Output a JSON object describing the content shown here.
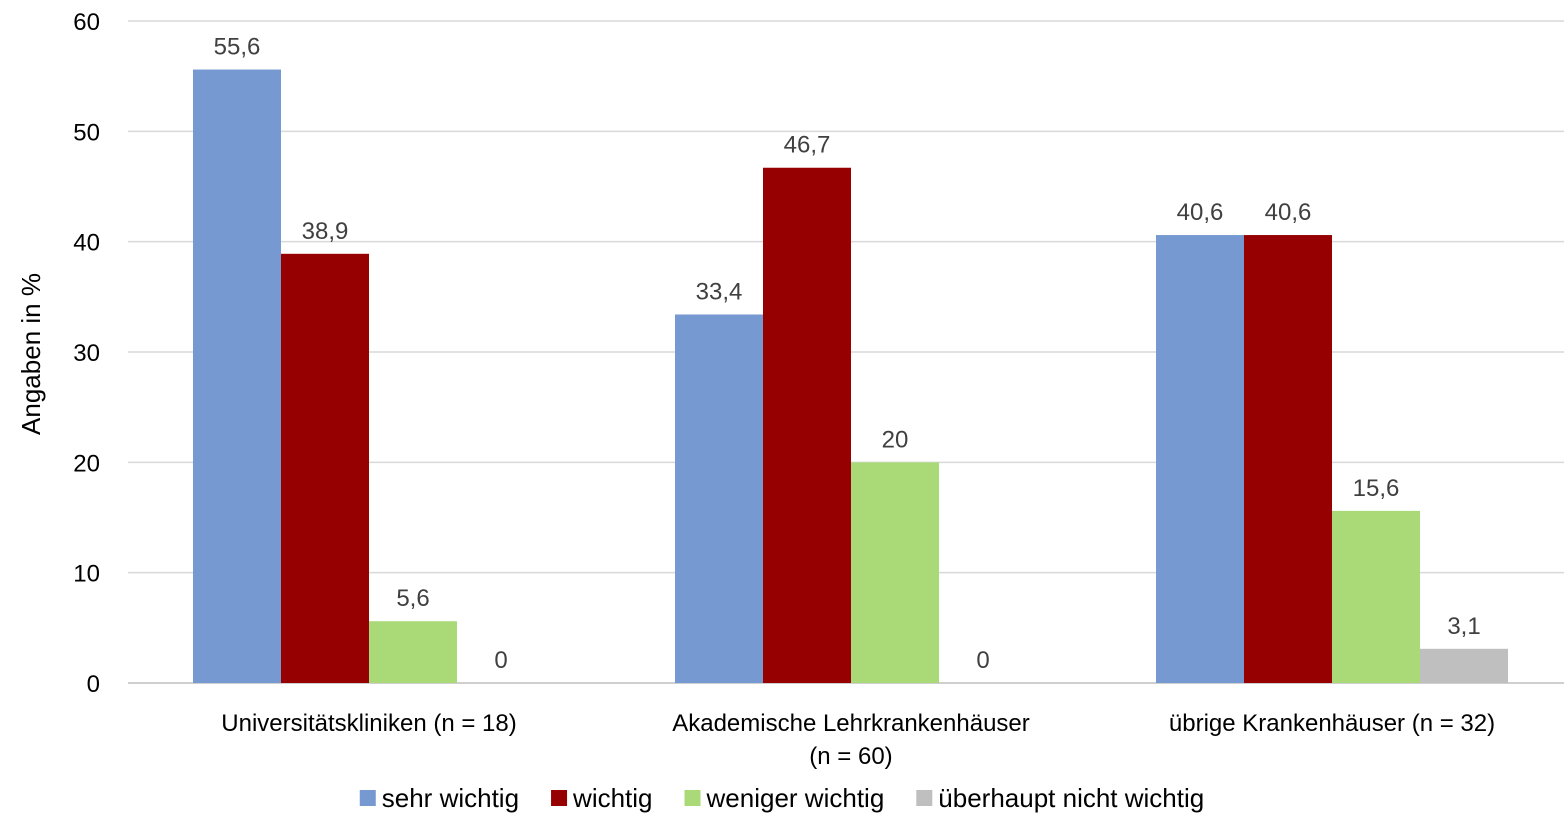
{
  "chart_data": {
    "type": "bar",
    "ylabel": "Angaben in %",
    "ylim": [
      0,
      60
    ],
    "yticks": [
      0,
      10,
      20,
      30,
      40,
      50,
      60
    ],
    "grid": true,
    "legend_position": "bottom",
    "categories": [
      [
        "Universitätskliniken (n = 18)"
      ],
      [
        "Akademische Lehrkrankenhäuser",
        "(n = 60)"
      ],
      [
        "übrige Krankenhäuser (n = 32)"
      ]
    ],
    "series": [
      {
        "name": "sehr wichtig",
        "color": "#7599d0",
        "values": [
          55.6,
          33.4,
          40.6
        ],
        "labels": [
          "55,6",
          "33,4",
          "40,6"
        ]
      },
      {
        "name": "wichtig",
        "color": "#960000",
        "values": [
          38.9,
          46.7,
          40.6
        ],
        "labels": [
          "38,9",
          "46,7",
          "40,6"
        ]
      },
      {
        "name": "weniger wichtig",
        "color": "#aad978",
        "values": [
          5.6,
          20,
          15.6
        ],
        "labels": [
          "5,6",
          "20",
          "15,6"
        ]
      },
      {
        "name": "überhaupt nicht wichtig",
        "color": "#bfbfbf",
        "values": [
          0,
          0,
          3.1
        ],
        "labels": [
          "0",
          "0",
          "3,1"
        ]
      }
    ]
  }
}
